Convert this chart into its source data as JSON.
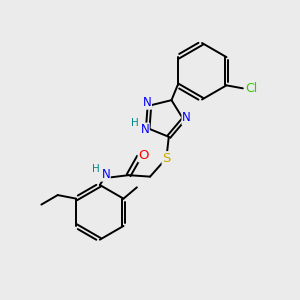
{
  "bg_color": "#ebebeb",
  "atom_colors": {
    "N": "#0000ff",
    "O": "#ff0000",
    "S": "#ccaa00",
    "Cl": "#33cc00",
    "H": "#008888",
    "C": "#000000"
  },
  "font_size": 8.5,
  "bond_width": 1.4
}
